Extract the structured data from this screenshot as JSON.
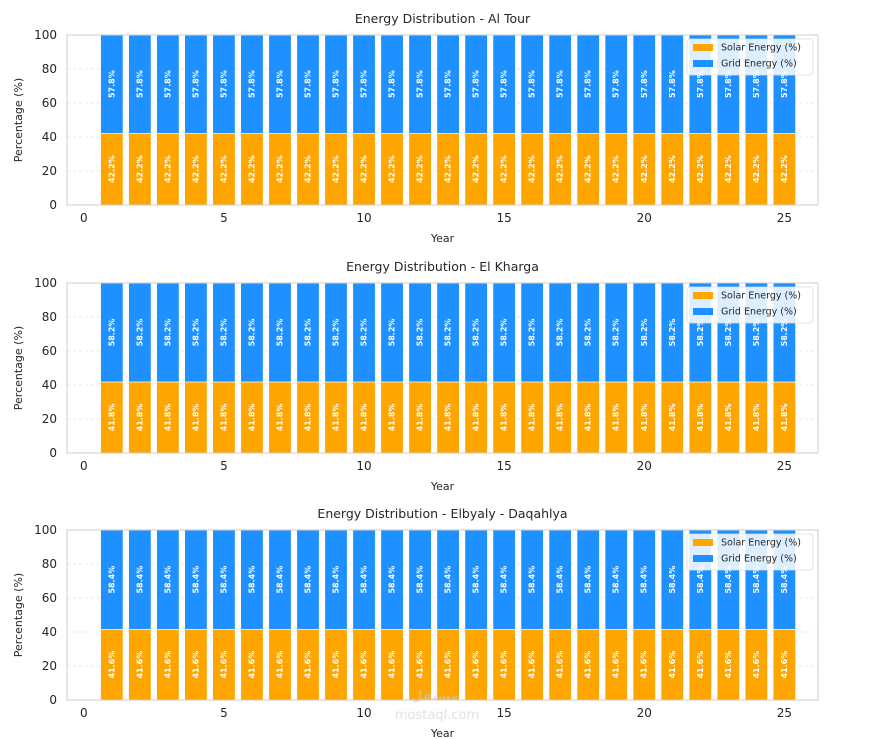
{
  "chart_data": [
    {
      "type": "bar",
      "stacked": true,
      "title": "Energy Distribution - Al Tour",
      "xlabel": "Year",
      "ylabel": "Percentage (%)",
      "x": [
        1,
        2,
        3,
        4,
        5,
        6,
        7,
        8,
        9,
        10,
        11,
        12,
        13,
        14,
        15,
        16,
        17,
        18,
        19,
        20,
        21,
        22,
        23,
        24,
        25
      ],
      "xlim": [
        -0.6,
        26.2
      ],
      "ylim": [
        0,
        100
      ],
      "xticks": [
        0,
        5,
        10,
        15,
        20,
        25
      ],
      "yticks": [
        0,
        20,
        40,
        60,
        80,
        100
      ],
      "grid": true,
      "legend_position": "top-right",
      "series": [
        {
          "name": "Solar Energy (%)",
          "color": "#FFA500",
          "value": 42.2,
          "label": "42.2%"
        },
        {
          "name": "Grid Energy (%)",
          "color": "#1E90FF",
          "value": 57.8,
          "label": "57.8%"
        }
      ]
    },
    {
      "type": "bar",
      "stacked": true,
      "title": "Energy Distribution - El Kharga",
      "xlabel": "Year",
      "ylabel": "Percentage (%)",
      "x": [
        1,
        2,
        3,
        4,
        5,
        6,
        7,
        8,
        9,
        10,
        11,
        12,
        13,
        14,
        15,
        16,
        17,
        18,
        19,
        20,
        21,
        22,
        23,
        24,
        25
      ],
      "xlim": [
        -0.6,
        26.2
      ],
      "ylim": [
        0,
        100
      ],
      "xticks": [
        0,
        5,
        10,
        15,
        20,
        25
      ],
      "yticks": [
        0,
        20,
        40,
        60,
        80,
        100
      ],
      "grid": true,
      "legend_position": "top-right",
      "series": [
        {
          "name": "Solar Energy (%)",
          "color": "#FFA500",
          "value": 41.8,
          "label": "41.8%"
        },
        {
          "name": "Grid Energy (%)",
          "color": "#1E90FF",
          "value": 58.2,
          "label": "58.2%"
        }
      ]
    },
    {
      "type": "bar",
      "stacked": true,
      "title": "Energy Distribution - Elbyaly - Daqahlya",
      "xlabel": "Year",
      "ylabel": "Percentage (%)",
      "x": [
        1,
        2,
        3,
        4,
        5,
        6,
        7,
        8,
        9,
        10,
        11,
        12,
        13,
        14,
        15,
        16,
        17,
        18,
        19,
        20,
        21,
        22,
        23,
        24,
        25
      ],
      "xlim": [
        -0.6,
        26.2
      ],
      "ylim": [
        0,
        100
      ],
      "xticks": [
        0,
        5,
        10,
        15,
        20,
        25
      ],
      "yticks": [
        0,
        20,
        40,
        60,
        80,
        100
      ],
      "grid": true,
      "legend_position": "top-right",
      "series": [
        {
          "name": "Solar Energy (%)",
          "color": "#FFA500",
          "value": 41.6,
          "label": "41.6%"
        },
        {
          "name": "Grid Energy (%)",
          "color": "#1E90FF",
          "value": 58.4,
          "label": "58.4%"
        }
      ]
    }
  ],
  "watermark": {
    "logo_text": "مستقل",
    "url_text": "mostaql.com"
  }
}
